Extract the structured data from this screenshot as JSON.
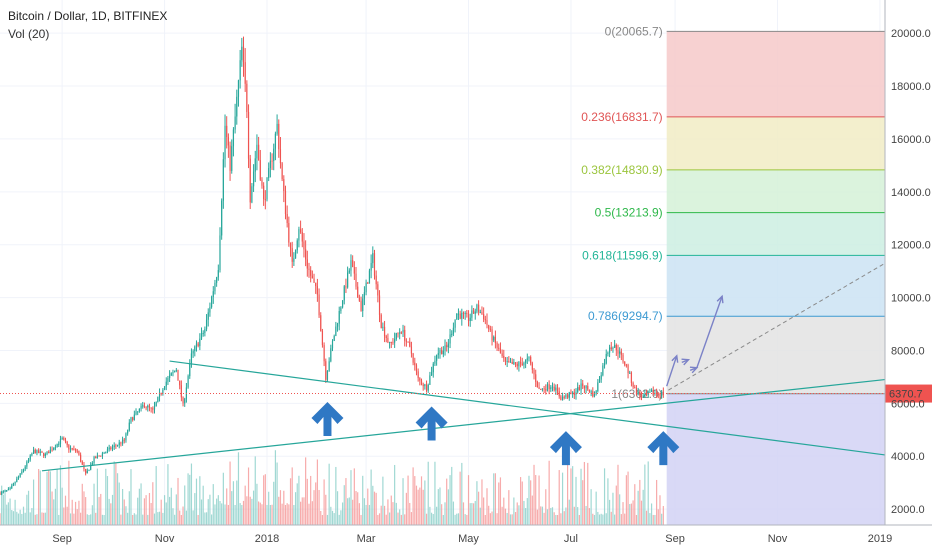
{
  "header": {
    "title": "Bitcoin / Dollar, 1D, BITFINEX",
    "volume_label": "Vol (20)"
  },
  "colors": {
    "up": "#26a69a",
    "down": "#ef5350",
    "vol_up": "#80cbc4",
    "vol_down": "#f48f8f",
    "trendline": "#26a69a",
    "arrow": "#2f78c4",
    "projection": "#7b82c7",
    "price_badge": "#ef5350"
  },
  "chart_data": {
    "type": "candlestick",
    "ylim": [
      1400,
      20800
    ],
    "y_ticks": [
      "20000.0",
      "18000.0",
      "16000.0",
      "14000.0",
      "12000.0",
      "10000.0",
      "8000.0",
      "6000.0",
      "4000.0",
      "2000.0"
    ],
    "y_tick_values": [
      20000,
      18000,
      16000,
      14000,
      12000,
      10000,
      8000,
      6000,
      4000,
      2000
    ],
    "x_ticks": [
      "Sep",
      "Nov",
      "2018",
      "Mar",
      "May",
      "Jul",
      "Sep",
      "Nov",
      "2019"
    ],
    "x_tick_dates": [
      "2017-09-01",
      "2017-11-01",
      "2018-01-01",
      "2018-03-01",
      "2018-05-01",
      "2018-07-01",
      "2018-09-01",
      "2018-11-01",
      "2019-01-01"
    ],
    "x_range": [
      "2017-07-26",
      "2019-01-04"
    ],
    "last_price": "6370.7",
    "last_price_value": 6370.7,
    "fib_levels": [
      {
        "label": "0(20065.7)",
        "value": 20065.7,
        "color": "#888888",
        "band": "#f6c9c9"
      },
      {
        "label": "0.236(16831.7)",
        "value": 16831.7,
        "color": "#e05555",
        "band": "#f1ecc4"
      },
      {
        "label": "0.382(14830.9)",
        "value": 14830.9,
        "color": "#9bc53d",
        "band": "#d5f1d7"
      },
      {
        "label": "0.5(13213.9)",
        "value": 13213.9,
        "color": "#2eb84a",
        "band": "#cdeee2"
      },
      {
        "label": "0.618(11596.9)",
        "value": 11596.9,
        "color": "#22b597",
        "band": "#cbe3f3"
      },
      {
        "label": "0.786(9294.7)",
        "value": 9294.7,
        "color": "#3c9ad2",
        "band": "#e3e3e3"
      },
      {
        "label": "1(6362.0)",
        "value": 6362.0,
        "color": "#888888",
        "band": "#d2d2f4"
      }
    ],
    "fib_band_bottom": 1400,
    "price_path": [
      [
        "2017-07-26",
        2600
      ],
      [
        "2017-08-01",
        2750
      ],
      [
        "2017-08-08",
        3400
      ],
      [
        "2017-08-15",
        4200
      ],
      [
        "2017-08-22",
        4050
      ],
      [
        "2017-09-01",
        4650
      ],
      [
        "2017-09-05",
        4300
      ],
      [
        "2017-09-10",
        4200
      ],
      [
        "2017-09-15",
        3300
      ],
      [
        "2017-09-20",
        3900
      ],
      [
        "2017-09-30",
        4300
      ],
      [
        "2017-10-08",
        4600
      ],
      [
        "2017-10-12",
        5400
      ],
      [
        "2017-10-20",
        5950
      ],
      [
        "2017-10-25",
        5700
      ],
      [
        "2017-11-01",
        6750
      ],
      [
        "2017-11-08",
        7300
      ],
      [
        "2017-11-12",
        5900
      ],
      [
        "2017-11-17",
        7800
      ],
      [
        "2017-11-25",
        8800
      ],
      [
        "2017-11-29",
        10000
      ],
      [
        "2017-12-03",
        11200
      ],
      [
        "2017-12-07",
        16500
      ],
      [
        "2017-12-10",
        15000
      ],
      [
        "2017-12-13",
        16800
      ],
      [
        "2017-12-17",
        19400
      ],
      [
        "2017-12-20",
        17200
      ],
      [
        "2017-12-22",
        13800
      ],
      [
        "2017-12-26",
        15800
      ],
      [
        "2017-12-30",
        13600
      ],
      [
        "2018-01-03",
        15000
      ],
      [
        "2018-01-07",
        16500
      ],
      [
        "2018-01-10",
        14400
      ],
      [
        "2018-01-16",
        11200
      ],
      [
        "2018-01-20",
        12700
      ],
      [
        "2018-01-25",
        11200
      ],
      [
        "2018-01-31",
        10100
      ],
      [
        "2018-02-05",
        7000
      ],
      [
        "2018-02-09",
        8300
      ],
      [
        "2018-02-15",
        10000
      ],
      [
        "2018-02-20",
        11300
      ],
      [
        "2018-02-26",
        9600
      ],
      [
        "2018-03-05",
        11500
      ],
      [
        "2018-03-10",
        9000
      ],
      [
        "2018-03-15",
        8200
      ],
      [
        "2018-03-22",
        8800
      ],
      [
        "2018-03-28",
        7900
      ],
      [
        "2018-04-01",
        6900
      ],
      [
        "2018-04-06",
        6600
      ],
      [
        "2018-04-12",
        7900
      ],
      [
        "2018-04-18",
        8100
      ],
      [
        "2018-04-24",
        9400
      ],
      [
        "2018-05-01",
        9200
      ],
      [
        "2018-05-06",
        9600
      ],
      [
        "2018-05-10",
        9300
      ],
      [
        "2018-05-15",
        8500
      ],
      [
        "2018-05-23",
        7500
      ],
      [
        "2018-05-30",
        7450
      ],
      [
        "2018-06-06",
        7650
      ],
      [
        "2018-06-12",
        6500
      ],
      [
        "2018-06-20",
        6700
      ],
      [
        "2018-06-25",
        6200
      ],
      [
        "2018-07-02",
        6350
      ],
      [
        "2018-07-08",
        6700
      ],
      [
        "2018-07-15",
        6300
      ],
      [
        "2018-07-20",
        7400
      ],
      [
        "2018-07-24",
        8200
      ],
      [
        "2018-07-28",
        8100
      ],
      [
        "2018-08-03",
        7400
      ],
      [
        "2018-08-08",
        6500
      ],
      [
        "2018-08-13",
        6200
      ],
      [
        "2018-08-18",
        6400
      ],
      [
        "2018-08-22",
        6380
      ],
      [
        "2018-08-25",
        6370.7
      ]
    ],
    "trendlines": [
      {
        "from": [
          "2017-11-04",
          7600
        ],
        "to": [
          "2019-01-04",
          4050
        ]
      },
      {
        "from": [
          "2017-08-20",
          3450
        ],
        "to": [
          "2019-01-04",
          6900
        ]
      }
    ],
    "projection_dashed": {
      "from": [
        "2018-08-28",
        6500
      ],
      "to": [
        "2019-01-04",
        11300
      ]
    },
    "projection_path": [
      [
        "2018-08-27",
        6650
      ],
      [
        "2018-09-02",
        7800
      ],
      [
        "2018-09-05",
        7550
      ],
      [
        "2018-09-09",
        7650
      ],
      [
        "2018-09-10",
        7250
      ],
      [
        "2018-09-14",
        7350
      ],
      [
        "2018-09-29",
        10050
      ]
    ],
    "bounce_arrows": [
      [
        "2018-02-06",
        6050
      ],
      [
        "2018-04-09",
        5880
      ],
      [
        "2018-06-28",
        4950
      ],
      [
        "2018-08-25",
        4950
      ]
    ]
  }
}
